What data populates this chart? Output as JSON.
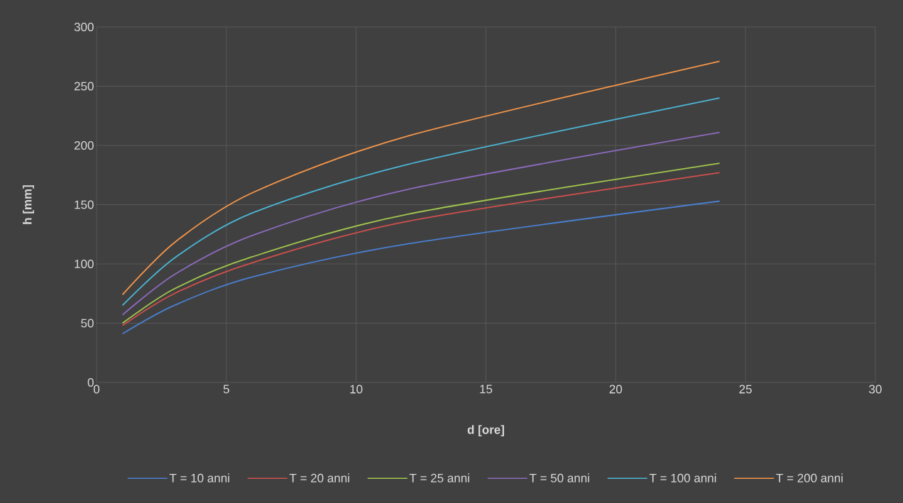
{
  "chart_data": {
    "type": "line",
    "xlabel": "d [ore]",
    "ylabel": "h [mm]",
    "x": [
      1,
      3,
      6,
      12,
      24
    ],
    "series": [
      {
        "name": "T = 10 anni",
        "color": "#4a7fd0",
        "values": [
          41,
          65,
          89,
          117,
          153
        ]
      },
      {
        "name": "T = 20 anni",
        "color": "#d0504c",
        "values": [
          48,
          75,
          101,
          136,
          177
        ]
      },
      {
        "name": "T = 25 anni",
        "color": "#a2c64c",
        "values": [
          50,
          79,
          106,
          142,
          185
        ]
      },
      {
        "name": "T = 50 anni",
        "color": "#8c6bbd",
        "values": [
          57,
          91,
          124,
          163,
          211
        ]
      },
      {
        "name": "T = 100 anni",
        "color": "#4bb6d6",
        "values": [
          65,
          105,
          143,
          184,
          240
        ]
      },
      {
        "name": "T = 200 anni",
        "color": "#f5964a",
        "values": [
          74,
          118,
          160,
          208,
          271
        ]
      }
    ],
    "xlim": [
      0,
      30
    ],
    "xticks": [
      0,
      5,
      10,
      15,
      20,
      25,
      30
    ],
    "ylim": [
      0,
      300
    ],
    "yticks": [
      0,
      50,
      100,
      150,
      200,
      250,
      300
    ],
    "grid": true,
    "legend": "bottom",
    "marker": "none",
    "line_style": "solid"
  }
}
